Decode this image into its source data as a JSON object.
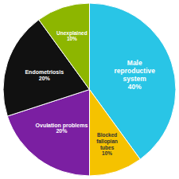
{
  "chart_data": {
    "type": "pie",
    "categories": [
      "Male\nreproductive\nsystem",
      "Blocked\nfallopian\ntubes",
      "Ovulation problems",
      "Endometriosis",
      "Unexplained"
    ],
    "values": [
      40,
      10,
      20,
      20,
      10
    ],
    "value_labels": [
      "40%",
      "10%",
      "20%",
      "20%",
      "10%"
    ],
    "colors": [
      "#29C5E6",
      "#F5C200",
      "#7B1FA2",
      "#111111",
      "#8DB600"
    ],
    "data_labels": true
  }
}
